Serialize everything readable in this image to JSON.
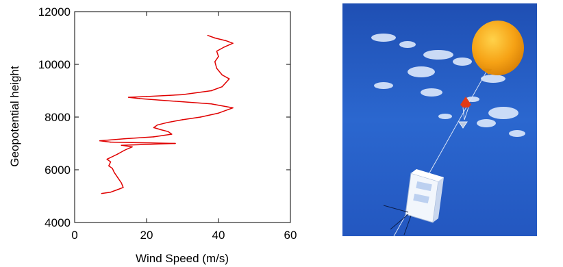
{
  "chart_data": {
    "type": "line",
    "title": "",
    "xlabel": "Wind Speed (m/s)",
    "ylabel": "Geopotential height",
    "xlim": [
      0,
      60
    ],
    "ylim": [
      4000,
      12000
    ],
    "xticks": [
      "0",
      "20",
      "40",
      "60"
    ],
    "yticks": [
      "4000",
      "6000",
      "8000",
      "10000",
      "12000"
    ],
    "grid": false,
    "legend": "none",
    "line_color": "#e00000",
    "series": [
      {
        "points": [
          [
            7.5,
            5100
          ],
          [
            10,
            5150
          ],
          [
            12,
            5250
          ],
          [
            13.5,
            5330
          ],
          [
            13,
            5500
          ],
          [
            12,
            5700
          ],
          [
            11,
            5900
          ],
          [
            10.5,
            6050
          ],
          [
            9.5,
            6150
          ],
          [
            10,
            6300
          ],
          [
            9,
            6400
          ],
          [
            10.5,
            6500
          ],
          [
            12,
            6600
          ],
          [
            14,
            6750
          ],
          [
            16,
            6870
          ],
          [
            13,
            6930
          ],
          [
            28,
            7000
          ],
          [
            10,
            7050
          ],
          [
            7,
            7100
          ],
          [
            14,
            7180
          ],
          [
            22,
            7250
          ],
          [
            27,
            7350
          ],
          [
            26,
            7450
          ],
          [
            24,
            7520
          ],
          [
            22,
            7600
          ],
          [
            23,
            7700
          ],
          [
            26,
            7800
          ],
          [
            30,
            7900
          ],
          [
            35,
            8000
          ],
          [
            40,
            8150
          ],
          [
            44,
            8350
          ],
          [
            38,
            8500
          ],
          [
            28,
            8600
          ],
          [
            18,
            8700
          ],
          [
            15,
            8750
          ],
          [
            20,
            8780
          ],
          [
            30,
            8850
          ],
          [
            38,
            9000
          ],
          [
            41,
            9150
          ],
          [
            42,
            9300
          ],
          [
            43,
            9450
          ],
          [
            41,
            9600
          ],
          [
            39.5,
            9850
          ],
          [
            39,
            10100
          ],
          [
            40,
            10300
          ],
          [
            39.5,
            10500
          ],
          [
            41.5,
            10650
          ],
          [
            44,
            10800
          ],
          [
            42,
            10900
          ],
          [
            39,
            11000
          ],
          [
            37,
            11100
          ]
        ]
      }
    ]
  }
}
